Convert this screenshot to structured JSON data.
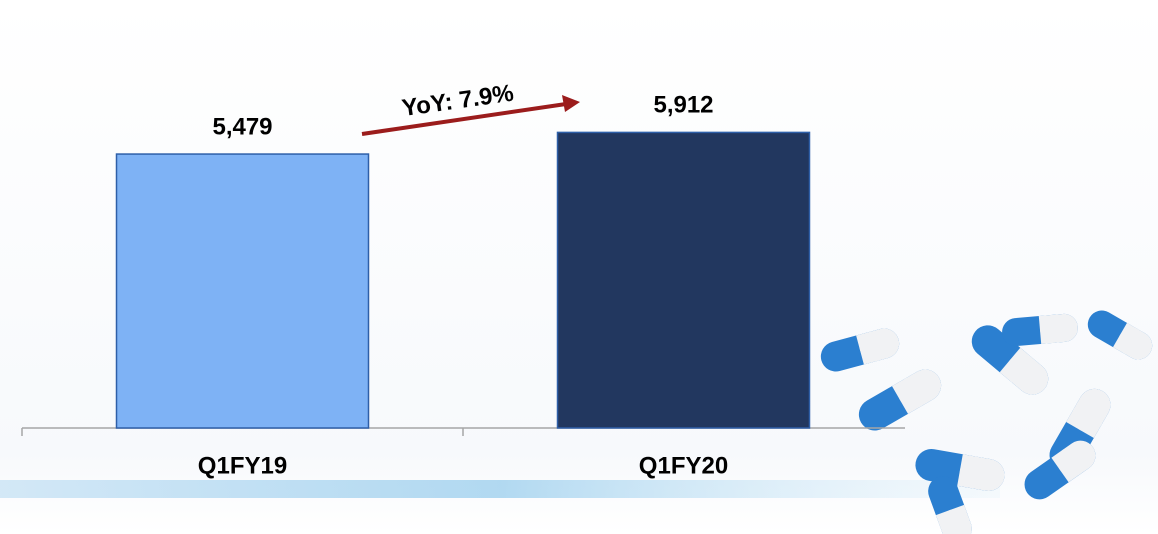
{
  "chart_data": {
    "type": "bar",
    "categories": [
      "Q1FY19",
      "Q1FY20"
    ],
    "values": [
      5479,
      5912
    ],
    "value_labels": [
      "5,479",
      "5,912"
    ],
    "colors": [
      "#7eb2f5",
      "#22375f"
    ],
    "annotation": "YoY: 7.9%"
  }
}
